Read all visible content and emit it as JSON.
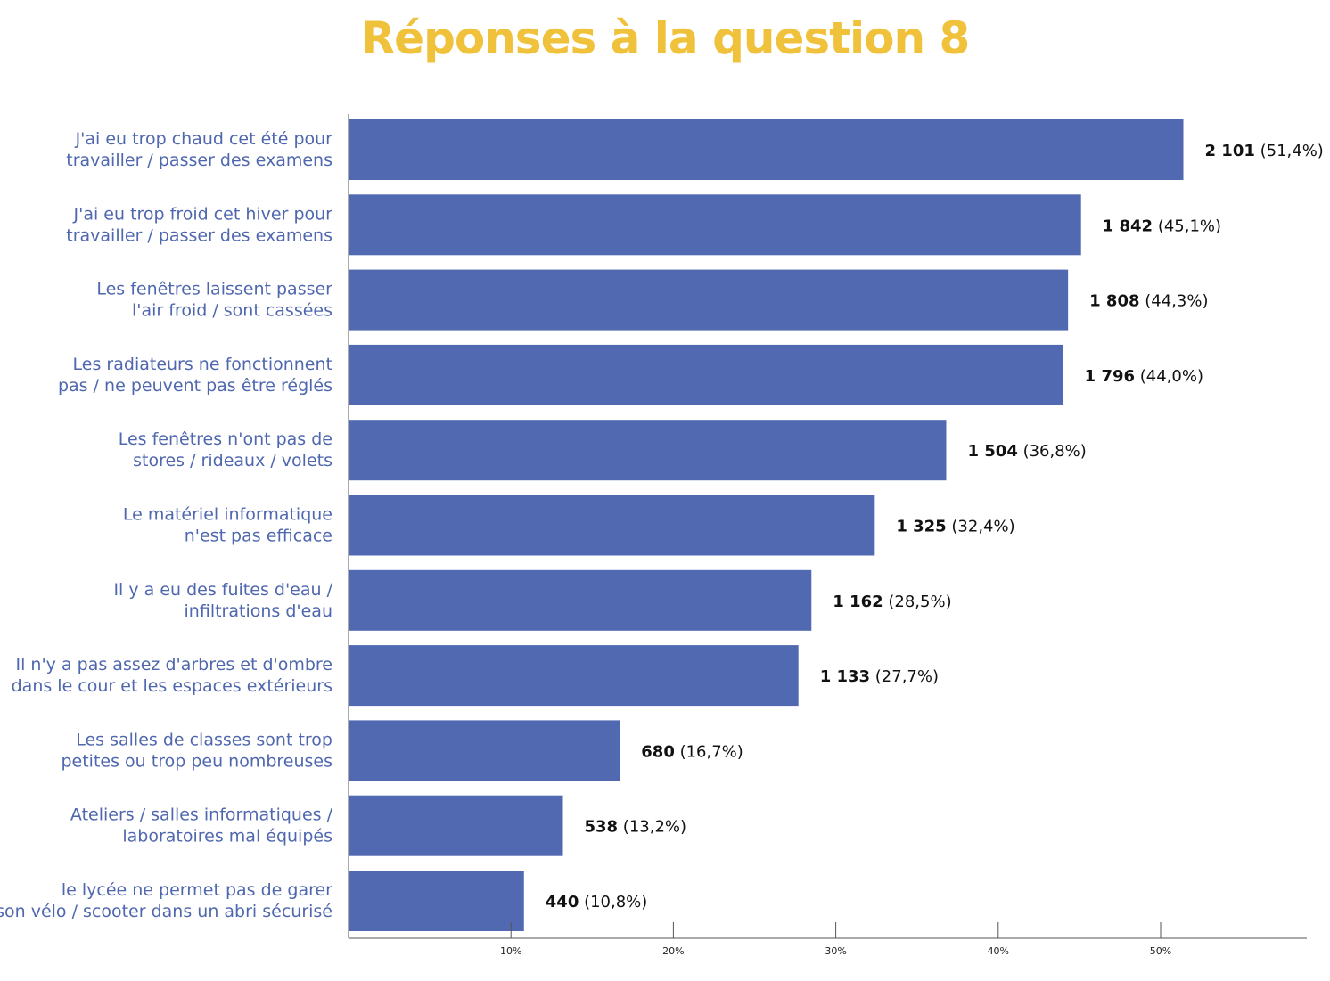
{
  "colors": {
    "title": "#F0C23C",
    "bar": "#5069B0",
    "category_text": "#4F67AE",
    "axis": "#555555"
  },
  "chart_data": {
    "type": "bar",
    "orientation": "horizontal",
    "title": "Réponses à la question 8",
    "categories": [
      [
        "J'ai eu trop chaud cet été pour",
        "travailler / passer des examens"
      ],
      [
        "J'ai eu trop froid cet hiver pour",
        "travailler / passer des examens"
      ],
      [
        "Les fenêtres laissent passer",
        "l'air froid / sont cassées"
      ],
      [
        "Les radiateurs ne fonctionnent",
        "pas / ne peuvent pas être réglés"
      ],
      [
        "Les fenêtres n'ont pas de",
        "stores / rideaux / volets"
      ],
      [
        "Le matériel informatique",
        "n'est pas efficace"
      ],
      [
        "Il y a eu des fuites d'eau /",
        "infiltrations d'eau"
      ],
      [
        "Il n'y a pas assez d'arbres et d'ombre",
        "dans le cour et les espaces extérieurs"
      ],
      [
        "Les salles de classes sont trop",
        "petites ou trop peu nombreuses"
      ],
      [
        "Ateliers / salles informatiques /",
        "laboratoires mal équipés"
      ],
      [
        "le lycée ne permet pas de garer",
        "son vélo / scooter dans un abri sécurisé"
      ]
    ],
    "values": [
      2101,
      1842,
      1808,
      1796,
      1504,
      1325,
      1162,
      1133,
      680,
      538,
      440
    ],
    "percentages": [
      51.4,
      45.1,
      44.3,
      44.0,
      36.8,
      32.4,
      28.5,
      27.7,
      16.7,
      13.2,
      10.8
    ],
    "value_labels": [
      "2 101",
      "1 842",
      "1 808",
      "1 796",
      "1 504",
      "1 325",
      "1 162",
      "1 133",
      "680",
      "538",
      "440"
    ],
    "percent_labels": [
      "(51,4%)",
      "(45,1%)",
      "(44,3%)",
      "(44,0%)",
      "(36,8%)",
      "(32,4%)",
      "(28,5%)",
      "(27,7%)",
      "(16,7%)",
      "(13,2%)",
      "(10,8%)"
    ],
    "x_ticks": [
      10,
      20,
      30,
      40,
      50
    ],
    "x_tick_labels": [
      "10%",
      "20%",
      "30%",
      "40%",
      "50%"
    ],
    "xlim": [
      0,
      59
    ],
    "xlabel": "",
    "ylabel": "",
    "grid": false,
    "legend": "none"
  }
}
